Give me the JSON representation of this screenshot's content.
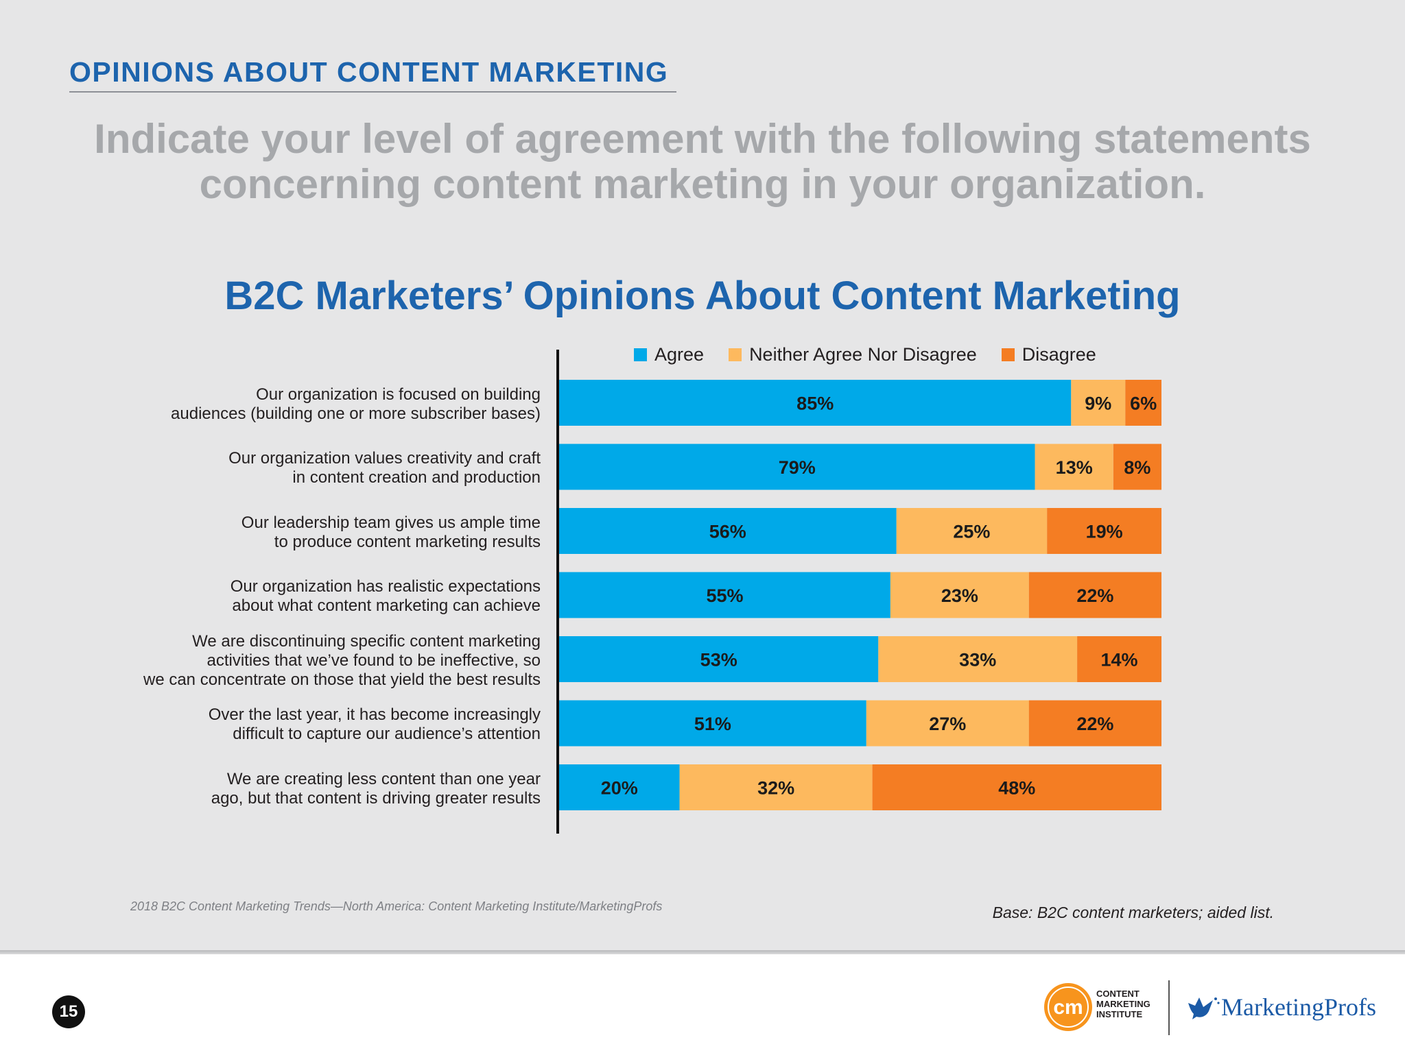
{
  "section_title": "OPINIONS ABOUT CONTENT MARKETING",
  "question": {
    "line1": "Indicate your level of agreement with the following statements",
    "line2": "concerning content marketing in your organization."
  },
  "colors": {
    "agree": "#00a9e8",
    "neither": "#fdb95e",
    "disagree": "#f47d23",
    "title_blue": "#1d64ad"
  },
  "chart_data": {
    "type": "bar",
    "orientation": "horizontal",
    "stacked": true,
    "title": "B2C Marketers’ Opinions About Content Marketing",
    "xlabel": "",
    "ylabel": "",
    "xlim": [
      0,
      100
    ],
    "grid": false,
    "legend_position": "top",
    "categories": [
      [
        "Our organization is focused on building",
        "audiences (building one or more subscriber bases)"
      ],
      [
        "Our organization values creativity and craft",
        "in content creation and production"
      ],
      [
        "Our leadership team gives us ample time",
        "to produce content marketing results"
      ],
      [
        "Our organization has realistic expectations",
        "about what content marketing can achieve"
      ],
      [
        "We are discontinuing specific content marketing",
        "activities that we’ve found to be ineffective, so",
        "we can concentrate on those that yield the best results"
      ],
      [
        "Over the last year, it has become increasingly",
        "difficult to capture our audience’s attention"
      ],
      [
        "We are creating less content than one year",
        "ago, but that content is driving greater results"
      ]
    ],
    "series": [
      {
        "name": "Agree",
        "values": [
          85,
          79,
          56,
          55,
          53,
          51,
          20
        ]
      },
      {
        "name": "Neither Agree Nor Disagree",
        "values": [
          9,
          13,
          25,
          23,
          33,
          27,
          32
        ]
      },
      {
        "name": "Disagree",
        "values": [
          6,
          8,
          19,
          22,
          14,
          22,
          48
        ]
      }
    ],
    "value_suffix": "%"
  },
  "source": "2018 B2C Content Marketing Trends—North America: Content Marketing Institute/MarketingProfs",
  "base_note": "Base: B2C content marketers; aided list.",
  "page_number": "15",
  "logos": {
    "cmi_mark": "cm",
    "cmi_lines": [
      "CONTENT",
      "MARKETING",
      "INSTITUTE"
    ],
    "marketingprofs": "MarketingProfs"
  }
}
